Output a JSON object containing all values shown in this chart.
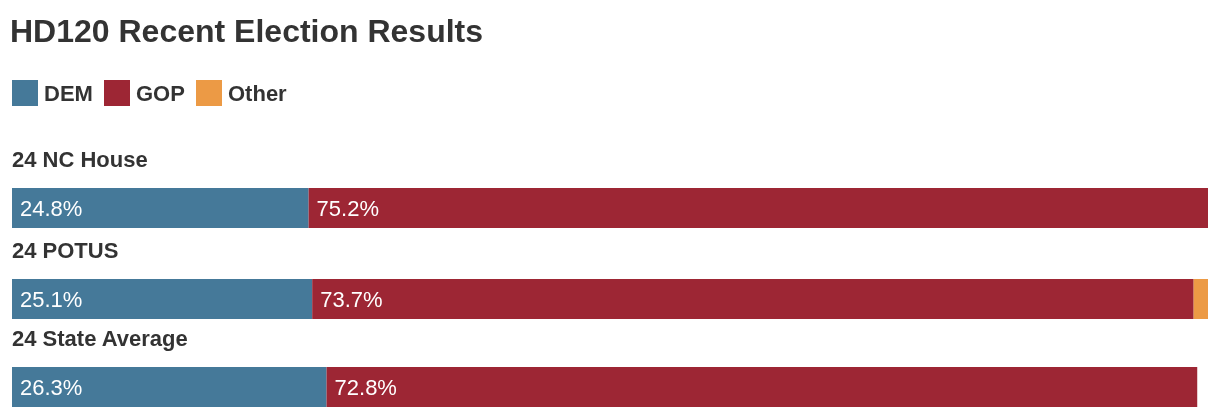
{
  "chart_data": {
    "type": "bar",
    "orientation": "horizontal",
    "stacked": true,
    "title": "HD120 Recent Election Results",
    "categories": [
      "24 NC House",
      "24 POTUS",
      "24 State Average"
    ],
    "legend": "top left",
    "xlim": [
      0,
      100
    ],
    "series": [
      {
        "name": "DEM",
        "color": "#457999",
        "values": [
          24.8,
          25.1,
          26.3
        ],
        "value_labels": [
          "24.8%",
          "25.1%",
          "26.3%"
        ]
      },
      {
        "name": "GOP",
        "color": "#9d2634",
        "values": [
          75.2,
          73.7,
          72.8
        ],
        "value_labels": [
          "75.2%",
          "73.7%",
          "72.8%"
        ]
      },
      {
        "name": "Other",
        "color": "#ec9a45",
        "values": [
          null,
          1.2,
          null
        ],
        "value_labels": [
          null,
          null,
          null
        ]
      }
    ]
  }
}
